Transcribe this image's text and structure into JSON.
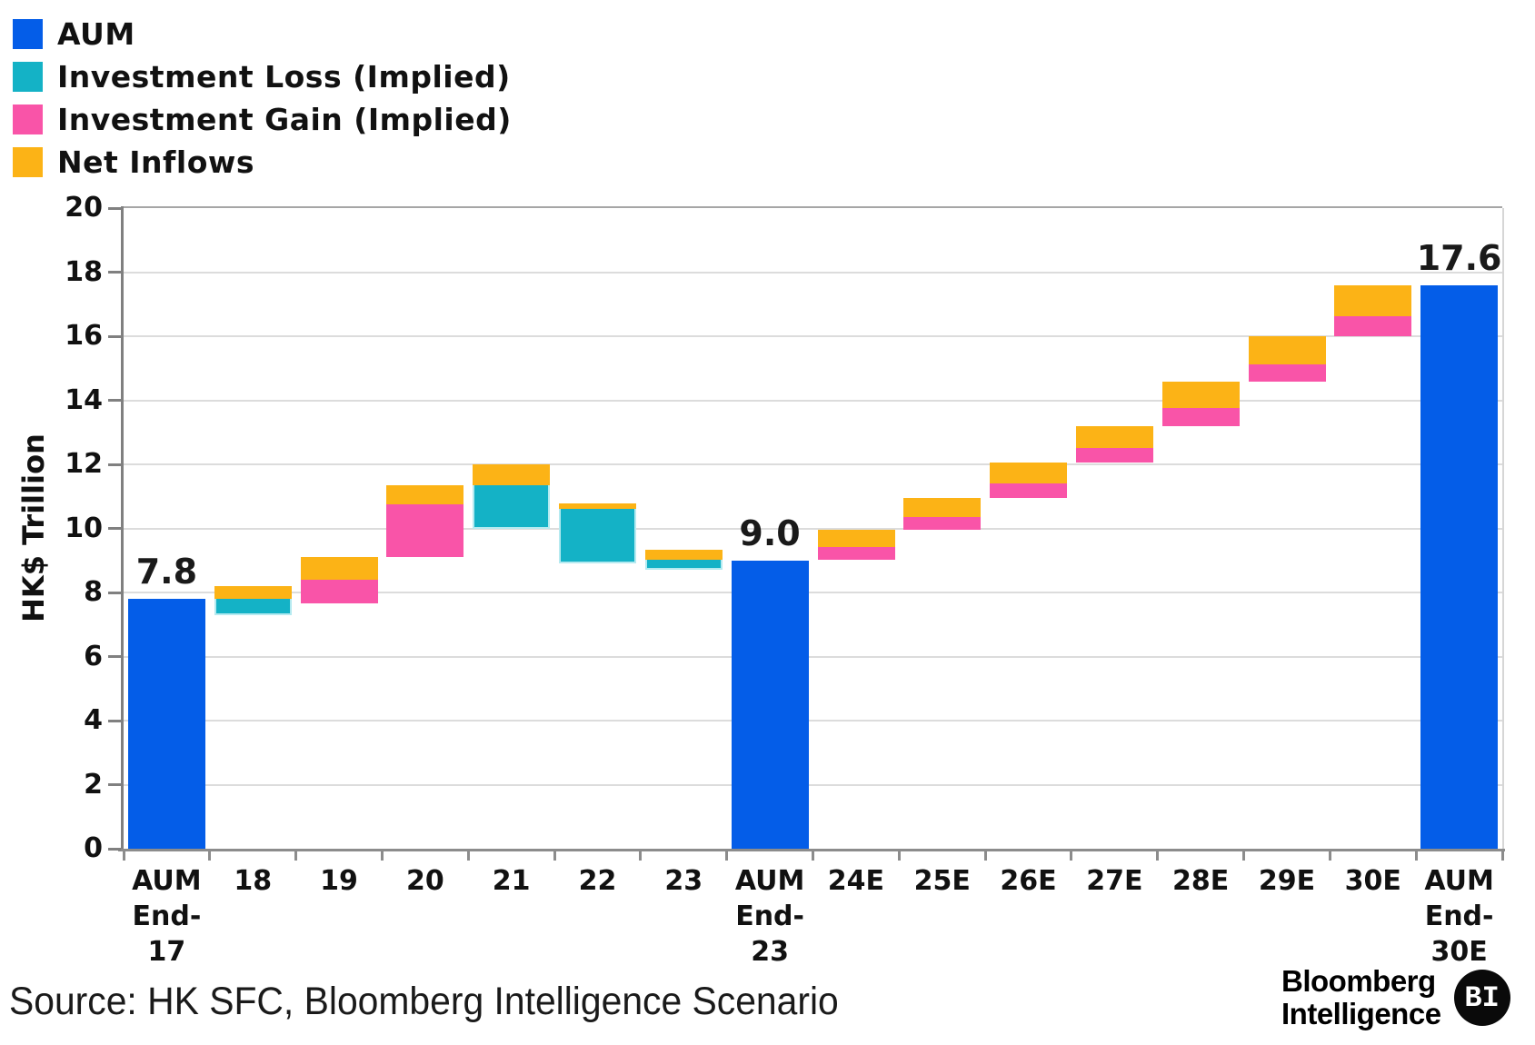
{
  "legend": {
    "items": [
      {
        "label": "AUM",
        "color": "#045de8"
      },
      {
        "label": "Investment Loss (Implied)",
        "color": "#14b2c6"
      },
      {
        "label": "Investment Gain (Implied)",
        "color": "#f954a8"
      },
      {
        "label": "Net Inflows",
        "color": "#fcb316"
      }
    ]
  },
  "chart_data": {
    "type": "waterfall",
    "title": "",
    "ylabel": "HK$ Trillion",
    "xlabel": "",
    "ylim": [
      0,
      20
    ],
    "y_ticks": [
      0,
      2,
      4,
      6,
      8,
      10,
      12,
      14,
      16,
      18,
      20
    ],
    "grid": "horizontal",
    "legend_position": "top-left",
    "categories": [
      "AUM End-17",
      "18",
      "19",
      "20",
      "21",
      "22",
      "23",
      "AUM End-23",
      "24E",
      "25E",
      "26E",
      "27E",
      "28E",
      "29E",
      "30E",
      "AUM End-30E"
    ],
    "category_lines": [
      [
        "AUM",
        "End-",
        "17"
      ],
      [
        "18"
      ],
      [
        "19"
      ],
      [
        "20"
      ],
      [
        "21"
      ],
      [
        "22"
      ],
      [
        "23"
      ],
      [
        "AUM",
        "End-",
        "23"
      ],
      [
        "24E"
      ],
      [
        "25E"
      ],
      [
        "26E"
      ],
      [
        "27E"
      ],
      [
        "28E"
      ],
      [
        "29E"
      ],
      [
        "30E"
      ],
      [
        "AUM",
        "End-",
        "30E"
      ]
    ],
    "series": [
      "AUM",
      "Investment Loss (Implied)",
      "Investment Gain (Implied)",
      "Net Inflows"
    ],
    "bars": [
      {
        "category": "AUM End-17",
        "annotation": "7.8",
        "segments": [
          {
            "series": "AUM",
            "from": 0,
            "to": 7.8
          }
        ]
      },
      {
        "category": "18",
        "segments": [
          {
            "series": "Investment Loss (Implied)",
            "from": 7.3,
            "to": 7.8
          },
          {
            "series": "Net Inflows",
            "from": 7.8,
            "to": 8.2
          }
        ]
      },
      {
        "category": "19",
        "segments": [
          {
            "series": "Investment Gain (Implied)",
            "from": 7.65,
            "to": 8.4
          },
          {
            "series": "Net Inflows",
            "from": 8.4,
            "to": 9.1
          }
        ]
      },
      {
        "category": "20",
        "segments": [
          {
            "series": "Investment Gain (Implied)",
            "from": 9.1,
            "to": 10.75
          },
          {
            "series": "Net Inflows",
            "from": 10.75,
            "to": 11.35
          }
        ]
      },
      {
        "category": "21",
        "segments": [
          {
            "series": "Investment Loss (Implied)",
            "from": 10.0,
            "to": 11.35
          },
          {
            "series": "Net Inflows",
            "from": 11.35,
            "to": 12.0
          }
        ]
      },
      {
        "category": "22",
        "segments": [
          {
            "series": "Investment Loss (Implied)",
            "from": 8.9,
            "to": 10.6
          },
          {
            "series": "Net Inflows",
            "from": 10.6,
            "to": 10.78
          }
        ]
      },
      {
        "category": "23",
        "segments": [
          {
            "series": "Investment Loss (Implied)",
            "from": 8.7,
            "to": 9.02
          },
          {
            "series": "Net Inflows",
            "from": 9.02,
            "to": 9.33
          }
        ]
      },
      {
        "category": "AUM End-23",
        "annotation": "9.0",
        "segments": [
          {
            "series": "AUM",
            "from": 0,
            "to": 9.0
          }
        ]
      },
      {
        "category": "24E",
        "segments": [
          {
            "series": "Investment Gain (Implied)",
            "from": 9.02,
            "to": 9.43
          },
          {
            "series": "Net Inflows",
            "from": 9.43,
            "to": 9.95
          }
        ]
      },
      {
        "category": "25E",
        "segments": [
          {
            "series": "Investment Gain (Implied)",
            "from": 9.95,
            "to": 10.35
          },
          {
            "series": "Net Inflows",
            "from": 10.35,
            "to": 10.95
          }
        ]
      },
      {
        "category": "26E",
        "segments": [
          {
            "series": "Investment Gain (Implied)",
            "from": 10.95,
            "to": 11.41
          },
          {
            "series": "Net Inflows",
            "from": 11.41,
            "to": 12.05
          }
        ]
      },
      {
        "category": "27E",
        "segments": [
          {
            "series": "Investment Gain (Implied)",
            "from": 12.05,
            "to": 12.5
          },
          {
            "series": "Net Inflows",
            "from": 12.5,
            "to": 13.18
          }
        ]
      },
      {
        "category": "28E",
        "segments": [
          {
            "series": "Investment Gain (Implied)",
            "from": 13.18,
            "to": 13.76
          },
          {
            "series": "Net Inflows",
            "from": 13.76,
            "to": 14.58
          }
        ]
      },
      {
        "category": "29E",
        "segments": [
          {
            "series": "Investment Gain (Implied)",
            "from": 14.58,
            "to": 15.12
          },
          {
            "series": "Net Inflows",
            "from": 15.12,
            "to": 16.0
          }
        ]
      },
      {
        "category": "30E",
        "segments": [
          {
            "series": "Investment Gain (Implied)",
            "from": 16.0,
            "to": 16.62
          },
          {
            "series": "Net Inflows",
            "from": 16.62,
            "to": 17.6
          }
        ]
      },
      {
        "category": "AUM End-30E",
        "annotation": "17.6",
        "segments": [
          {
            "series": "AUM",
            "from": 0,
            "to": 17.6
          }
        ]
      }
    ]
  },
  "footer": {
    "source": "Source: HK SFC, Bloomberg Intelligence Scenario",
    "logo_line1": "Bloomberg",
    "logo_line2": "Intelligence",
    "logo_badge": "BI"
  }
}
